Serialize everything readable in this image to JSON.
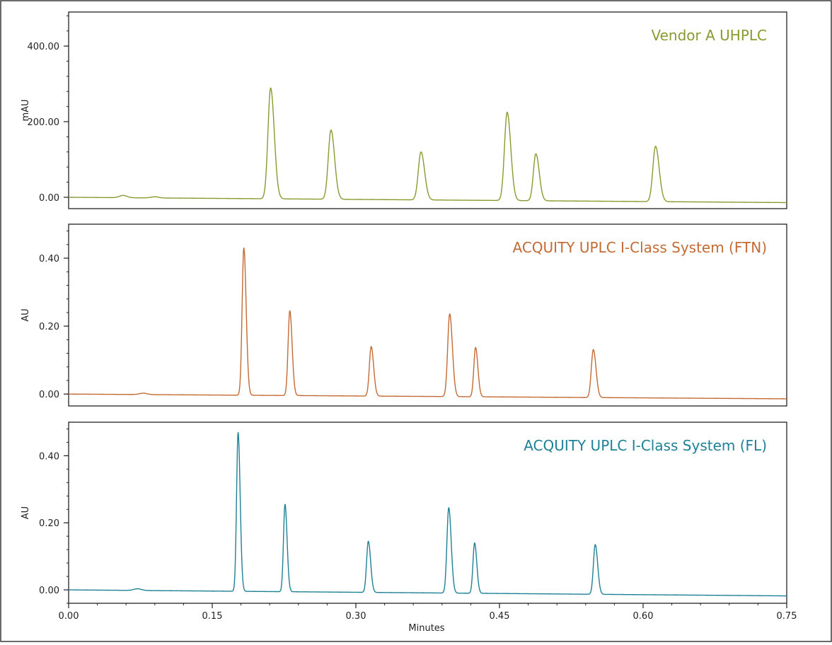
{
  "chart_data": {
    "type": "line",
    "xlabel": "Minutes",
    "xlim": [
      0,
      0.75
    ],
    "x_ticks": [
      "0.00",
      "0.15",
      "0.30",
      "0.45",
      "0.60",
      "0.75"
    ],
    "x_tick_values": [
      0,
      0.15,
      0.3,
      0.45,
      0.6,
      0.75
    ],
    "panels": [
      {
        "label": "Vendor A UHPLC",
        "color": "#8a9a2e",
        "ylabel": "mAU",
        "ylim": [
          -30,
          490
        ],
        "y_ticks": [
          "0.00",
          "200.00",
          "400.00"
        ],
        "y_tick_values": [
          0,
          200,
          400
        ],
        "baseline": {
          "x": [
            0,
            0.75
          ],
          "y": [
            0,
            -14
          ]
        },
        "bumps": [
          {
            "x": 0.057,
            "height": 6
          },
          {
            "x": 0.09,
            "height": 3
          }
        ],
        "peaks": [
          {
            "x": 0.211,
            "height": 289,
            "width": 0.0028
          },
          {
            "x": 0.274,
            "height": 178,
            "width": 0.0028
          },
          {
            "x": 0.368,
            "height": 120,
            "width": 0.0028
          },
          {
            "x": 0.458,
            "height": 225,
            "width": 0.0028
          },
          {
            "x": 0.488,
            "height": 115,
            "width": 0.0026
          },
          {
            "x": 0.613,
            "height": 135,
            "width": 0.0028
          }
        ]
      },
      {
        "label": "ACQUITY UPLC I-Class System (FTN)",
        "color": "#c46a34",
        "ylabel": "AU",
        "ylim": [
          -0.035,
          0.5
        ],
        "y_ticks": [
          "0.00",
          "0.20",
          "0.40"
        ],
        "y_tick_values": [
          0,
          0.2,
          0.4
        ],
        "baseline": {
          "x": [
            0,
            0.75
          ],
          "y": [
            0,
            -0.014
          ]
        },
        "bumps": [
          {
            "x": 0.078,
            "height": 0.004
          }
        ],
        "peaks": [
          {
            "x": 0.183,
            "height": 0.43,
            "width": 0.0018
          },
          {
            "x": 0.231,
            "height": 0.245,
            "width": 0.0018
          },
          {
            "x": 0.316,
            "height": 0.14,
            "width": 0.0019
          },
          {
            "x": 0.398,
            "height": 0.236,
            "width": 0.0021
          },
          {
            "x": 0.425,
            "height": 0.137,
            "width": 0.0018
          },
          {
            "x": 0.548,
            "height": 0.131,
            "width": 0.0021
          }
        ]
      },
      {
        "label": "ACQUITY UPLC I-Class System (FL)",
        "color": "#1e8196",
        "ylabel": "AU",
        "ylim": [
          -0.04,
          0.5
        ],
        "y_ticks": [
          "0.00",
          "0.20",
          "0.40"
        ],
        "y_tick_values": [
          0,
          0.2,
          0.4
        ],
        "baseline": {
          "x": [
            0,
            0.75
          ],
          "y": [
            0,
            -0.018
          ]
        },
        "bumps": [
          {
            "x": 0.072,
            "height": 0.005
          }
        ],
        "peaks": [
          {
            "x": 0.177,
            "height": 0.469,
            "width": 0.0016
          },
          {
            "x": 0.226,
            "height": 0.255,
            "width": 0.0016
          },
          {
            "x": 0.313,
            "height": 0.145,
            "width": 0.0018
          },
          {
            "x": 0.397,
            "height": 0.245,
            "width": 0.0019
          },
          {
            "x": 0.424,
            "height": 0.14,
            "width": 0.0017
          },
          {
            "x": 0.55,
            "height": 0.135,
            "width": 0.0019
          }
        ]
      }
    ]
  }
}
